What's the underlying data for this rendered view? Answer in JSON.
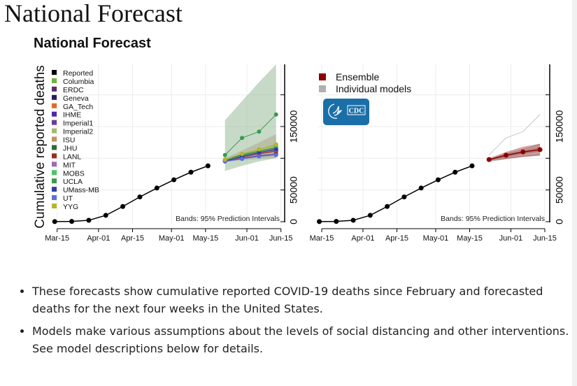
{
  "page": {
    "title": "National Forecast"
  },
  "figure_title": "National Forecast",
  "bullets": [
    "These forecasts show cumulative reported COVID-19 deaths since February and forecasted deaths for the next four weeks in the United States.",
    "Models make various assumptions about the levels of social distancing and other interventions. See model descriptions below for details."
  ],
  "chart_data": [
    {
      "type": "line",
      "ylabel": "Cumulative reported deaths",
      "xlabel": "",
      "x_ticks": [
        "Mar-15",
        "Apr-01",
        "Apr-15",
        "May-01",
        "May-15",
        "Jun-01",
        "Jun-15"
      ],
      "y_ticks": [
        "0",
        "50000",
        "150000"
      ],
      "ylim": [
        0,
        245000
      ],
      "xlim": [
        "2020-03-13",
        "2020-06-15"
      ],
      "grid": true,
      "legend_position": "top-left",
      "annotation": "Bands: 95% Prediction Intervals",
      "reported": {
        "name": "Reported",
        "color": "#000000",
        "x": [
          "2020-03-14",
          "2020-03-21",
          "2020-03-28",
          "2020-04-04",
          "2020-04-11",
          "2020-04-18",
          "2020-04-25",
          "2020-05-02",
          "2020-05-09",
          "2020-05-16"
        ],
        "y": [
          100,
          400,
          2200,
          10000,
          24000,
          39000,
          53000,
          66000,
          78000,
          88000
        ]
      },
      "forecast_x": [
        "2020-05-23",
        "2020-05-30",
        "2020-06-06",
        "2020-06-13"
      ],
      "series": [
        {
          "name": "Columbia",
          "color": "#6db33f",
          "y": [
            97000,
            106000,
            114000,
            121000
          ]
        },
        {
          "name": "ERDC",
          "color": "#5b2c6f",
          "y": [
            96000,
            103000,
            108000,
            113000
          ]
        },
        {
          "name": "Geneva",
          "color": "#2a1a5e",
          "y": [
            96000,
            102000,
            107000,
            111000
          ]
        },
        {
          "name": "GA_Tech",
          "color": "#e3672b",
          "y": [
            97000,
            103000,
            108000,
            112000
          ]
        },
        {
          "name": "IHME",
          "color": "#4b2aa8",
          "y": [
            95000,
            100000,
            104000,
            107000
          ]
        },
        {
          "name": "Imperial1",
          "color": "#6a3d9a",
          "y": [
            96000,
            103000,
            109000,
            115000
          ]
        },
        {
          "name": "Imperial2",
          "color": "#a6b86a",
          "y": [
            97000,
            105000,
            112000,
            118000
          ]
        },
        {
          "name": "ISU",
          "color": "#c4935a",
          "y": [
            97000,
            104000,
            110000,
            116000
          ]
        },
        {
          "name": "JHU",
          "color": "#2e6b3a",
          "y": [
            98000,
            105000,
            111000,
            117000
          ]
        },
        {
          "name": "LANL",
          "color": "#9b2d1f",
          "y": [
            96000,
            102000,
            107000,
            111000
          ]
        },
        {
          "name": "MIT",
          "color": "#9a6bb5",
          "y": [
            96000,
            103000,
            108000,
            113000
          ]
        },
        {
          "name": "MOBS",
          "color": "#4cc46a",
          "y": [
            97000,
            104000,
            110000,
            116000
          ]
        },
        {
          "name": "UCLA",
          "color": "#3a9a4f",
          "y": [
            105000,
            132000,
            142000,
            169000
          ],
          "band_low": [
            80000,
            88000,
            95000,
            100000
          ],
          "band_high": [
            160000,
            190000,
            220000,
            270000
          ]
        },
        {
          "name": "UMass-MB",
          "color": "#2f3f9e",
          "y": [
            96000,
            103000,
            109000,
            114000
          ]
        },
        {
          "name": "UT",
          "color": "#5b6fe0",
          "y": [
            95000,
            99000,
            103000,
            105000
          ]
        },
        {
          "name": "YYG",
          "color": "#b5b52a",
          "y": [
            98000,
            107000,
            114000,
            122000
          ]
        }
      ],
      "models_band": {
        "low": [
          94000,
          97000,
          99000,
          100000
        ],
        "high": [
          100000,
          112000,
          125000,
          138000
        ]
      }
    },
    {
      "type": "line",
      "x_ticks": [
        "Mar-15",
        "Apr-01",
        "Apr-15",
        "May-01",
        "May-15",
        "Jun-01",
        "Jun-15"
      ],
      "y_ticks": [
        "0",
        "50000",
        "150000"
      ],
      "ylim": [
        0,
        245000
      ],
      "grid": true,
      "legend_position": "top-left",
      "legend": [
        {
          "name": "Ensemble",
          "color": "#8b0000"
        },
        {
          "name": "Individual models",
          "color": "#b0b0b0"
        }
      ],
      "annotation": "Bands: 95% Prediction Intervals",
      "logo": "CDC",
      "ensemble": {
        "y": [
          98000,
          104700,
          110000,
          113500
        ],
        "band_low": [
          96000,
          99000,
          102000,
          104000
        ],
        "band_high": [
          100000,
          110000,
          118000,
          123000
        ]
      }
    }
  ]
}
